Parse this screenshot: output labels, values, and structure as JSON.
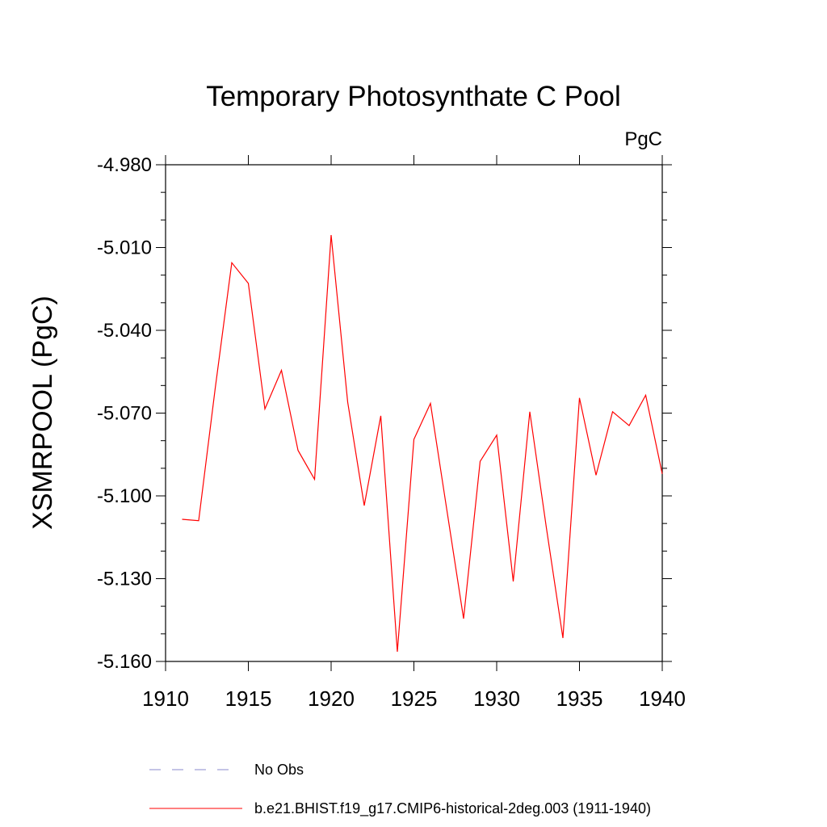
{
  "chart_data": {
    "type": "line",
    "title": "Temporary Photosynthate C Pool",
    "units": "PgC",
    "ylabel": "XSMRPOOL  (PgC)",
    "xlabel": "",
    "xlim": [
      1910,
      1940
    ],
    "ylim": [
      -5.16,
      -4.98
    ],
    "xticks": [
      1910,
      1915,
      1920,
      1925,
      1930,
      1935,
      1940
    ],
    "xtick_labels": [
      "1910",
      "1915",
      "1920",
      "1925",
      "1930",
      "1935",
      "1940"
    ],
    "yticks": [
      -5.16,
      -5.13,
      -5.1,
      -5.07,
      -5.04,
      -5.01,
      -4.98
    ],
    "ytick_labels": [
      "-5.160",
      "-5.130",
      "-5.100",
      "-5.070",
      "-5.040",
      "-5.010",
      "-4.980"
    ],
    "grid": false,
    "legend_placement": "bottom",
    "series": [
      {
        "name": "b.e21.BHIST.f19_g17.CMIP6-historical-2deg.003 (1911-1940)",
        "color": "#ff0000",
        "style": "solid",
        "x": [
          1911,
          1912,
          1913,
          1914,
          1915,
          1916,
          1917,
          1918,
          1919,
          1920,
          1921,
          1922,
          1923,
          1924,
          1925,
          1926,
          1927,
          1928,
          1929,
          1930,
          1931,
          1932,
          1933,
          1934,
          1935,
          1936,
          1937,
          1938,
          1939,
          1940
        ],
        "y": [
          -5.1085,
          -5.109,
          -5.061,
          -5.0155,
          -5.023,
          -5.0685,
          -5.0545,
          -5.0835,
          -5.094,
          -5.0055,
          -5.066,
          -5.1035,
          -5.071,
          -5.1565,
          -5.0795,
          -5.0665,
          -5.1055,
          -5.1445,
          -5.0875,
          -5.078,
          -5.131,
          -5.0695,
          -5.1115,
          -5.1515,
          -5.0645,
          -5.0925,
          -5.0695,
          -5.0745,
          -5.0635,
          -5.092
        ]
      }
    ],
    "legend": [
      {
        "label": "No Obs",
        "color": "#8888cc",
        "style": "dashed"
      },
      {
        "label": "b.e21.BHIST.f19_g17.CMIP6-historical-2deg.003 (1911-1940)",
        "color": "#ff0000",
        "style": "solid"
      }
    ]
  }
}
